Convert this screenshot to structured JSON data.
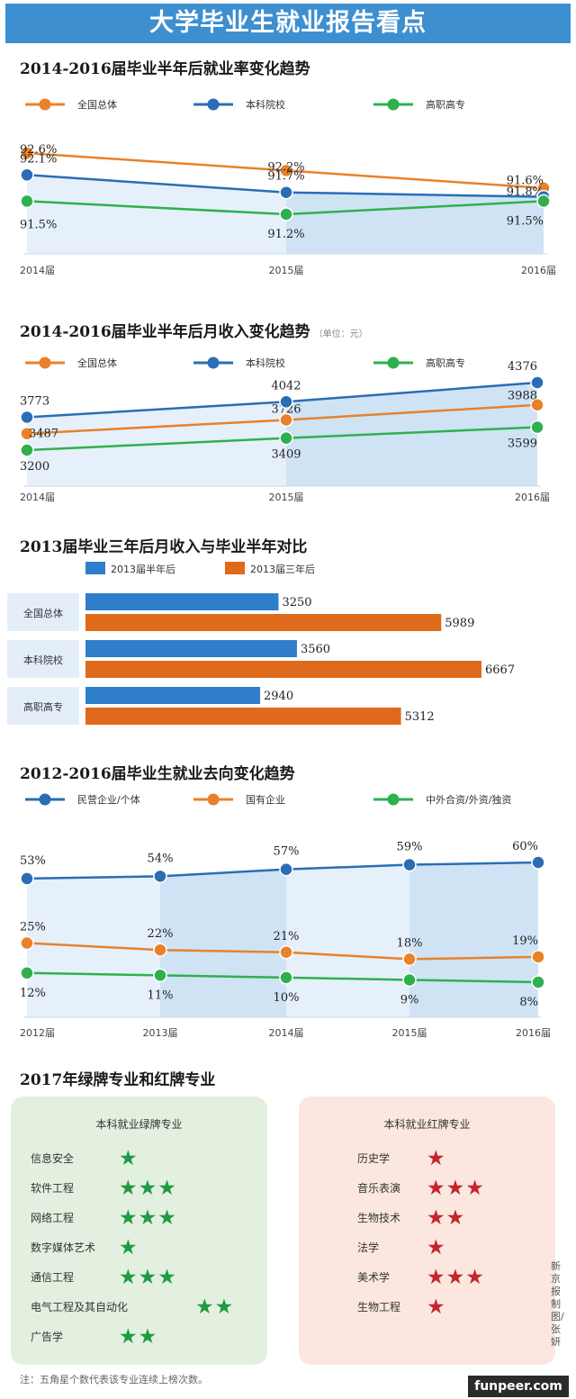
{
  "header": {
    "title": "大学毕业生就业报告看点"
  },
  "sections": {
    "s1": {
      "title": "2014-2016届毕业半年后就业率变化趋势"
    },
    "s2": {
      "title": "2014-2016届毕业半年后月收入变化趋势",
      "unit": "（单位：元）"
    },
    "s3": {
      "title": "2013届毕业三年后月收入与毕业半年对比"
    },
    "s4": {
      "title": "2012-2016届毕业生就业去向变化趋势"
    },
    "s5": {
      "title": "2017年绿牌专业和红牌专业"
    }
  },
  "chart_data": [
    {
      "type": "line",
      "title": "2014-2016届毕业半年后就业率变化趋势",
      "categories": [
        "2014届",
        "2015届",
        "2016届"
      ],
      "series": [
        {
          "name": "全国总体",
          "values": [
            92.6,
            92.2,
            91.8
          ],
          "labels": [
            "92.6%",
            "92.2%",
            "91.8%"
          ],
          "color": "#e8812a"
        },
        {
          "name": "本科院校",
          "values": [
            92.1,
            91.7,
            91.6
          ],
          "labels": [
            "92.1%",
            "91.7%",
            "91.6%"
          ],
          "color": "#2a6db5"
        },
        {
          "name": "高职高专",
          "values": [
            91.5,
            91.2,
            91.5
          ],
          "labels": [
            "91.5%",
            "91.2%",
            "91.5%"
          ],
          "color": "#2fb04f"
        }
      ]
    },
    {
      "type": "line",
      "title": "2014-2016届毕业半年后月收入变化趋势",
      "unit": "单位：元",
      "categories": [
        "2014届",
        "2015届",
        "2016届"
      ],
      "series": [
        {
          "name": "全国总体",
          "values": [
            3487,
            3726,
            3988
          ],
          "labels": [
            "3487",
            "3726",
            "3988"
          ],
          "color": "#e8812a"
        },
        {
          "name": "本科院校",
          "values": [
            3773,
            4042,
            4376
          ],
          "labels": [
            "3773",
            "4042",
            "4376"
          ],
          "color": "#2a6db5"
        },
        {
          "name": "高职高专",
          "values": [
            3200,
            3409,
            3599
          ],
          "labels": [
            "3200",
            "3409",
            "3599"
          ],
          "color": "#2fb04f"
        }
      ]
    },
    {
      "type": "bar",
      "title": "2013届毕业三年后月收入与毕业半年对比",
      "categories": [
        "全国总体",
        "本科院校",
        "高职高专"
      ],
      "series": [
        {
          "name": "2013届半年后",
          "values": [
            3250,
            3560,
            2940
          ],
          "color": "#2f7ec9"
        },
        {
          "name": "2013届三年后",
          "values": [
            5989,
            6667,
            5312
          ],
          "color": "#e06a1b"
        }
      ]
    },
    {
      "type": "line",
      "title": "2012-2016届毕业生就业去向变化趋势",
      "categories": [
        "2012届",
        "2013届",
        "2014届",
        "2015届",
        "2016届"
      ],
      "series": [
        {
          "name": "民营企业/个体",
          "values": [
            53,
            54,
            57,
            59,
            60
          ],
          "labels": [
            "53%",
            "54%",
            "57%",
            "59%",
            "60%"
          ],
          "color": "#2a6db5"
        },
        {
          "name": "国有企业",
          "values": [
            25,
            22,
            21,
            18,
            19
          ],
          "labels": [
            "25%",
            "22%",
            "21%",
            "18%",
            "19%"
          ],
          "color": "#e8812a"
        },
        {
          "name": "中外合资/外资/独资",
          "values": [
            12,
            11,
            10,
            9,
            8
          ],
          "labels": [
            "12%",
            "11%",
            "10%",
            "9%",
            "8%"
          ],
          "color": "#2fb04f"
        }
      ]
    }
  ],
  "green_box": {
    "title": "本科就业绿牌专业",
    "items": [
      {
        "name": "信息安全",
        "stars": "★"
      },
      {
        "name": "软件工程",
        "stars": "★★★"
      },
      {
        "name": "网络工程",
        "stars": "★★★"
      },
      {
        "name": "数字媒体艺术",
        "stars": "★"
      },
      {
        "name": "通信工程",
        "stars": "★★★"
      },
      {
        "name": "电气工程及其自动化",
        "stars": "★★"
      },
      {
        "name": "广告学",
        "stars": "★★"
      }
    ]
  },
  "red_box": {
    "title": "本科就业红牌专业",
    "items": [
      {
        "name": "历史学",
        "stars": "★"
      },
      {
        "name": "音乐表演",
        "stars": "★★★"
      },
      {
        "name": "生物技术",
        "stars": "★★"
      },
      {
        "name": "法学",
        "stars": "★"
      },
      {
        "name": "美术学",
        "stars": "★★★"
      },
      {
        "name": "生物工程",
        "stars": "★"
      }
    ]
  },
  "footer": {
    "note": "注：五角星个数代表该专业连续上榜次数。",
    "credit": "新京报制图/张妍",
    "watermark": "funpeer.com"
  }
}
